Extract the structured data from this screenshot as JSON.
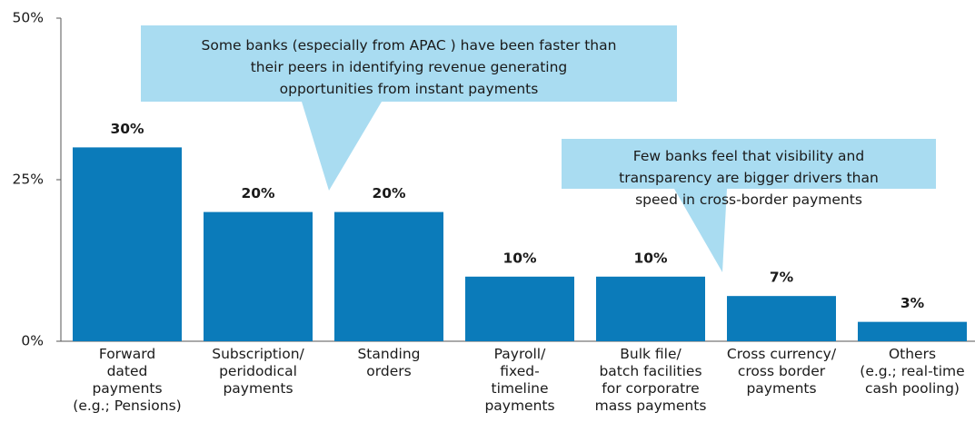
{
  "chart_data": {
    "type": "bar",
    "categories": [
      "Forward\ndated\npayments\n(e.g.; Pensions)",
      "Subscription/\nperidodical\npayments",
      "Standing\norders",
      "Payroll/\nfixed-\ntimeline\npayments",
      "Bulk file/\nbatch facilities\nfor corporatre\nmass payments",
      "Cross currency/\ncross border\npayments",
      "Others\n(e.g.; real-time\ncash pooling)"
    ],
    "values": [
      30,
      20,
      20,
      10,
      10,
      7,
      3
    ],
    "value_labels": [
      "30%",
      "20%",
      "20%",
      "10%",
      "10%",
      "7%",
      "3%"
    ],
    "color": "#0b7bba",
    "ylim": [
      0,
      50
    ],
    "yticks": [
      {
        "value": 0,
        "label": "0%"
      },
      {
        "value": 25,
        "label": "25%"
      },
      {
        "value": 50,
        "label": "50%"
      }
    ],
    "annotations": [
      "Some banks (especially from APAC ) have been faster than\ntheir peers in identifying revenue generating\nopportunities from instant payments",
      "Few banks feel that visibility and\ntransparency are bigger drivers than\nspeed in cross-border payments"
    ]
  }
}
